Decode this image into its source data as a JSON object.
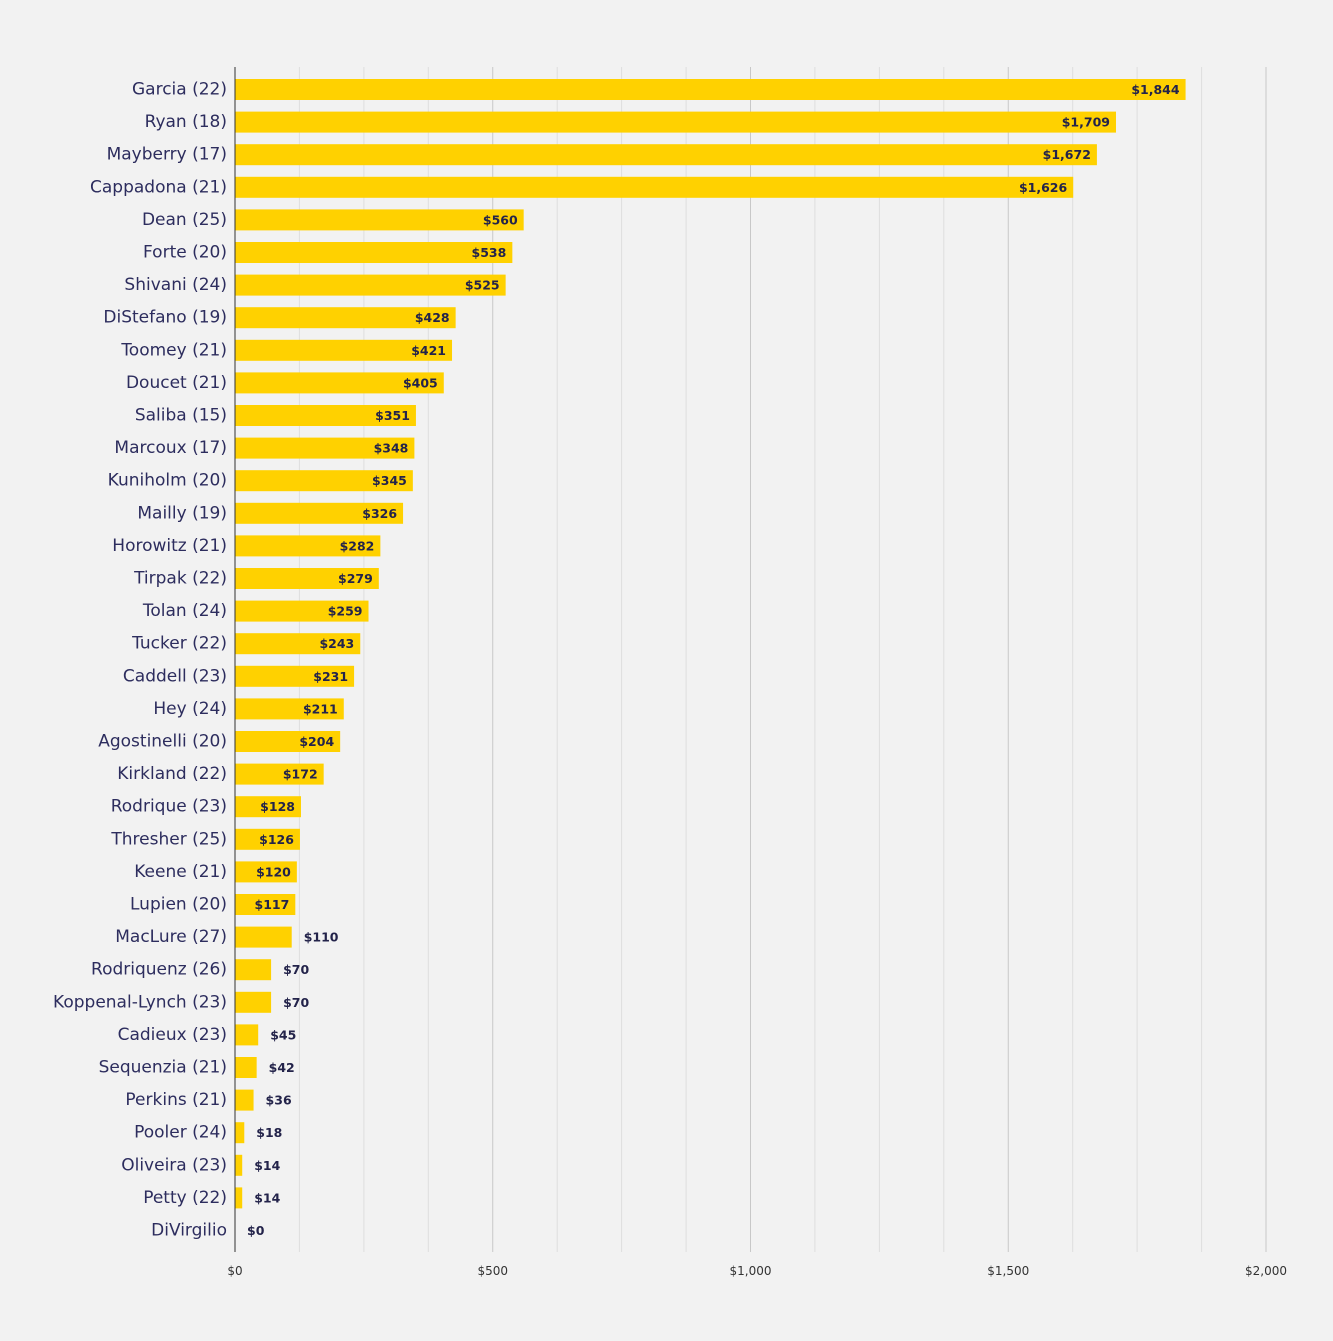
{
  "chart_data": {
    "type": "bar",
    "orientation": "horizontal",
    "categories": [
      "Garcia (22)",
      "Ryan (18)",
      "Mayberry (17)",
      "Cappadona (21)",
      "Dean (25)",
      "Forte (20)",
      "Shivani (24)",
      "DiStefano (19)",
      "Toomey (21)",
      "Doucet (21)",
      "Saliba (15)",
      "Marcoux (17)",
      "Kuniholm (20)",
      "Mailly (19)",
      "Horowitz (21)",
      "Tirpak (22)",
      "Tolan (24)",
      "Tucker (22)",
      "Caddell (23)",
      "Hey (24)",
      "Agostinelli (20)",
      "Kirkland (22)",
      "Rodrique (23)",
      "Thresher (25)",
      "Keene (21)",
      "Lupien (20)",
      "MacLure (27)",
      "Rodriquenz (26)",
      "Koppenal-Lynch (23)",
      "Cadieux (23)",
      "Sequenzia (21)",
      "Perkins (21)",
      "Pooler (24)",
      "Oliveira (23)",
      "Petty (22)",
      "DiVirgilio"
    ],
    "values": [
      1844,
      1709,
      1672,
      1626,
      560,
      538,
      525,
      428,
      421,
      405,
      351,
      348,
      345,
      326,
      282,
      279,
      259,
      243,
      231,
      211,
      204,
      172,
      128,
      126,
      120,
      117,
      110,
      70,
      70,
      45,
      42,
      36,
      18,
      14,
      14,
      0
    ],
    "value_labels": [
      "$1,844",
      "$1,709",
      "$1,672",
      "$1,626",
      "$560",
      "$538",
      "$525",
      "$428",
      "$421",
      "$405",
      "$351",
      "$348",
      "$345",
      "$326",
      "$282",
      "$279",
      "$259",
      "$243",
      "$231",
      "$211",
      "$204",
      "$172",
      "$128",
      "$126",
      "$120",
      "$117",
      "$110",
      "$70",
      "$70",
      "$45",
      "$42",
      "$36",
      "$18",
      "$14",
      "$14",
      "$0"
    ],
    "x_ticks": [
      0,
      500,
      1000,
      1500,
      2000
    ],
    "x_tick_labels": [
      "$0",
      "$500",
      "$1,000",
      "$1,500",
      "$2,000"
    ],
    "xlim": [
      0,
      2000
    ],
    "title": "",
    "xlabel": "",
    "ylabel": "",
    "grid": true,
    "legend": "none",
    "colors": {
      "bar": "#ffd100",
      "background": "#f2f2f2",
      "major_grid": "#c8c8c8",
      "minor_grid": "#dedede",
      "label_text": "#2d2d5e",
      "value_text": "#23234a"
    }
  }
}
